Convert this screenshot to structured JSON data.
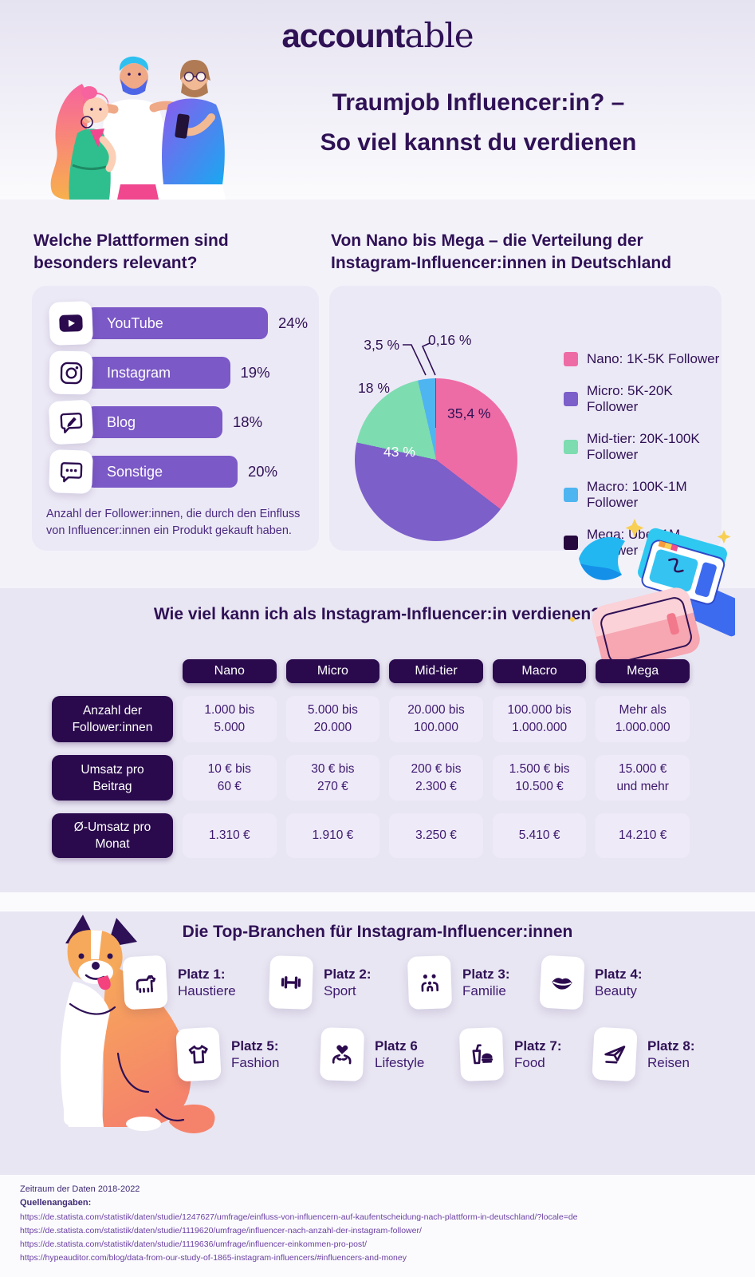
{
  "brand": {
    "logo_bold": "account",
    "logo_serif": "able"
  },
  "header": {
    "title_line1": "Traumjob Influencer:in? –",
    "title_line2": "So viel kannst du verdienen"
  },
  "platforms": {
    "heading": "Welche Plattformen sind\nbesonders relevant?",
    "caption": "Anzahl der Follower:innen, die durch den Einfluss von Influencer:innen ein Produkt gekauft haben.",
    "icons": [
      "youtube-icon",
      "instagram-icon",
      "blog-pencil-icon",
      "chat-dots-icon"
    ]
  },
  "distribution": {
    "heading": "Von Nano bis Mega – die Verteilung der\nInstagram-Influencer:innen in Deutschland"
  },
  "chart_data": [
    {
      "type": "bar",
      "title": "Welche Plattformen sind besonders relevant?",
      "categories": [
        "YouTube",
        "Instagram",
        "Blog",
        "Sonstige"
      ],
      "values": [
        24,
        19,
        18,
        20
      ],
      "value_labels": [
        "24%",
        "19%",
        "18%",
        "20%"
      ],
      "unit": "%",
      "orientation": "horizontal",
      "bar_color": "#7B59C6",
      "note": "Anzahl der Follower:innen, die durch den Einfluss von Influencer:innen ein Produkt gekauft haben."
    },
    {
      "type": "pie",
      "title": "Von Nano bis Mega – die Verteilung der Instagram-Influencer:innen in Deutschland",
      "legend_position": "right",
      "slices": [
        {
          "label": "Nano: 1K-5K Follower",
          "value": 35.4,
          "value_label": "35,4 %",
          "color": "#EE6CA6"
        },
        {
          "label": "Micro: 5K-20K Follower",
          "value": 43,
          "value_label": "43 %",
          "color": "#7C5FC9"
        },
        {
          "label": "Mid-tier: 20K-100K Follower",
          "value": 18,
          "value_label": "18 %",
          "color": "#7EDCB1"
        },
        {
          "label": "Macro: 100K-1M Follower",
          "value": 3.5,
          "value_label": "3,5 %",
          "color": "#4FB5F0"
        },
        {
          "label": "Mega: Über 1M Follower",
          "value": 0.16,
          "value_label": "0,16 %",
          "color": "#26073E"
        }
      ]
    }
  ],
  "earnings_table": {
    "heading": "Wie viel kann ich als Instagram-Influencer:in verdienen?",
    "columns": [
      "Nano",
      "Micro",
      "Mid-tier",
      "Macro",
      "Mega"
    ],
    "rows": [
      {
        "header": "Anzahl der\nFollower:innen",
        "cells": [
          "1.000 bis\n5.000",
          "5.000 bis\n20.000",
          "20.000 bis\n100.000",
          "100.000 bis\n1.000.000",
          "Mehr als\n1.000.000"
        ]
      },
      {
        "header": "Umsatz pro\nBeitrag",
        "cells": [
          "10 € bis\n60 €",
          "30 € bis\n270 €",
          "200 € bis\n2.300 €",
          "1.500 € bis\n10.500 €",
          "15.000 €\nund mehr"
        ]
      },
      {
        "header": "Ø-Umsatz pro\nMonat",
        "cells": [
          "1.310 €",
          "1.910 €",
          "3.250 €",
          "5.410 €",
          "14.210 €"
        ]
      }
    ]
  },
  "branchen": {
    "heading": "Die Top-Branchen für Instagram-Influencer:innen",
    "items": [
      {
        "rank": "Platz 1:",
        "label": "Haustiere",
        "icon": "dog-icon"
      },
      {
        "rank": "Platz 2:",
        "label": "Sport",
        "icon": "dumbbell-icon"
      },
      {
        "rank": "Platz 3:",
        "label": "Familie",
        "icon": "family-icon"
      },
      {
        "rank": "Platz 4:",
        "label": "Beauty",
        "icon": "lips-icon"
      },
      {
        "rank": "Platz 5:",
        "label": "Fashion",
        "icon": "tshirt-icon"
      },
      {
        "rank": "Platz 6",
        "label": "Lifestyle",
        "icon": "hands-heart-icon"
      },
      {
        "rank": "Platz 7:",
        "label": "Food",
        "icon": "food-icon"
      },
      {
        "rank": "Platz 8:",
        "label": "Reisen",
        "icon": "plane-icon"
      }
    ]
  },
  "footer": {
    "timeframe": "Zeitraum der Daten 2018-2022",
    "sources_label": "Quellenangaben:",
    "sources": [
      "https://de.statista.com/statistik/daten/studie/1247627/umfrage/einfluss-von-influencern-auf-kaufentscheidung-nach-plattform-in-deutschland/?locale=de",
      "https://de.statista.com/statistik/daten/studie/1119620/umfrage/influencer-nach-anzahl-der-instagram-follower/",
      "https://de.statista.com/statistik/daten/studie/1119636/umfrage/influencer-einkommen-pro-post/",
      "https://hypeauditor.com/blog/data-from-our-study-of-1865-instagram-influencers/#influencers-and-money"
    ]
  },
  "colors": {
    "ink": "#2F1155",
    "bar_purple": "#7B59C6",
    "pill_dark": "#2A0A4D",
    "band_lavender": "#E9E6F3",
    "card_lavender": "#ECE9F6",
    "cell_lavender": "#EFEAF8",
    "pink": "#EE6CA6",
    "micro_purple": "#7C5FC9",
    "green": "#7EDCB1",
    "blue": "#4FB5F0",
    "mega_dark": "#26073E",
    "sparkle_yellow": "#F7CF54"
  }
}
